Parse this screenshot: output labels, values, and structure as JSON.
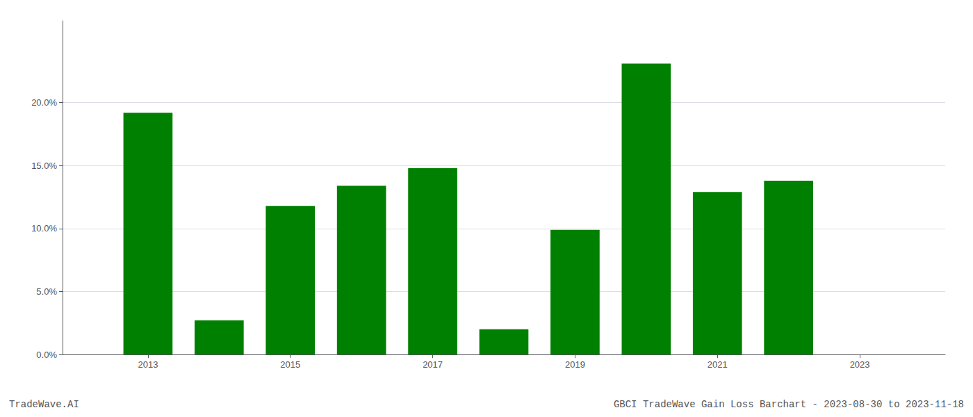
{
  "chart_data": {
    "type": "bar",
    "title": "GBCI TradeWave Gain Loss Barchart - 2023-08-30 to 2023-11-18",
    "annotations": [
      "TradeWave.AI"
    ],
    "x": [
      2013,
      2014,
      2015,
      2016,
      2017,
      2018,
      2019,
      2020,
      2021,
      2022
    ],
    "values": [
      0.192,
      0.027,
      0.118,
      0.134,
      0.148,
      0.02,
      0.099,
      0.231,
      0.129,
      0.138
    ],
    "color": "#008000",
    "xlim": [
      2011.8,
      2024.2
    ],
    "xticks": [
      2013,
      2015,
      2017,
      2019,
      2021,
      2023
    ],
    "ylim": [
      0.0,
      0.265
    ],
    "yticks": [
      {
        "value": 0.0,
        "label": "0.0%"
      },
      {
        "value": 0.05,
        "label": "5.0%"
      },
      {
        "value": 0.1,
        "label": "10.0%"
      },
      {
        "value": 0.15,
        "label": "15.0%"
      },
      {
        "value": 0.2,
        "label": "20.0%"
      }
    ],
    "grid": true
  }
}
